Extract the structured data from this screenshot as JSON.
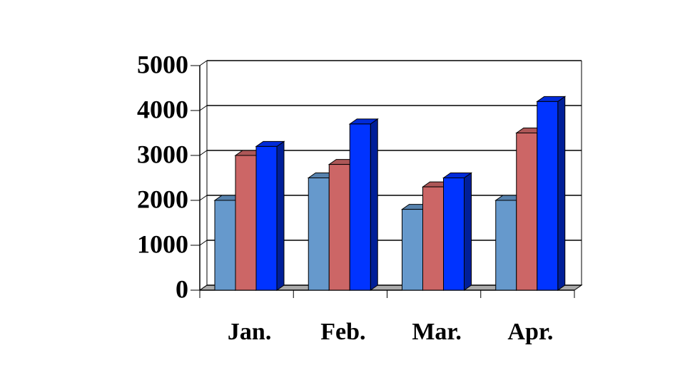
{
  "chart_data": {
    "type": "bar3d",
    "categories": [
      "Jan.",
      "Feb.",
      "Mar.",
      "Apr."
    ],
    "series": [
      {
        "color": "#6699cc",
        "values": [
          2000,
          2500,
          1800,
          2000
        ]
      },
      {
        "color": "#cc6666",
        "values": [
          3000,
          2800,
          2300,
          3500
        ]
      },
      {
        "color": "#0033ff",
        "values": [
          3200,
          3700,
          2500,
          4200
        ]
      }
    ],
    "ylim": [
      0,
      5000
    ],
    "yticks": [
      0,
      1000,
      2000,
      3000,
      4000,
      5000
    ],
    "grid": true
  }
}
